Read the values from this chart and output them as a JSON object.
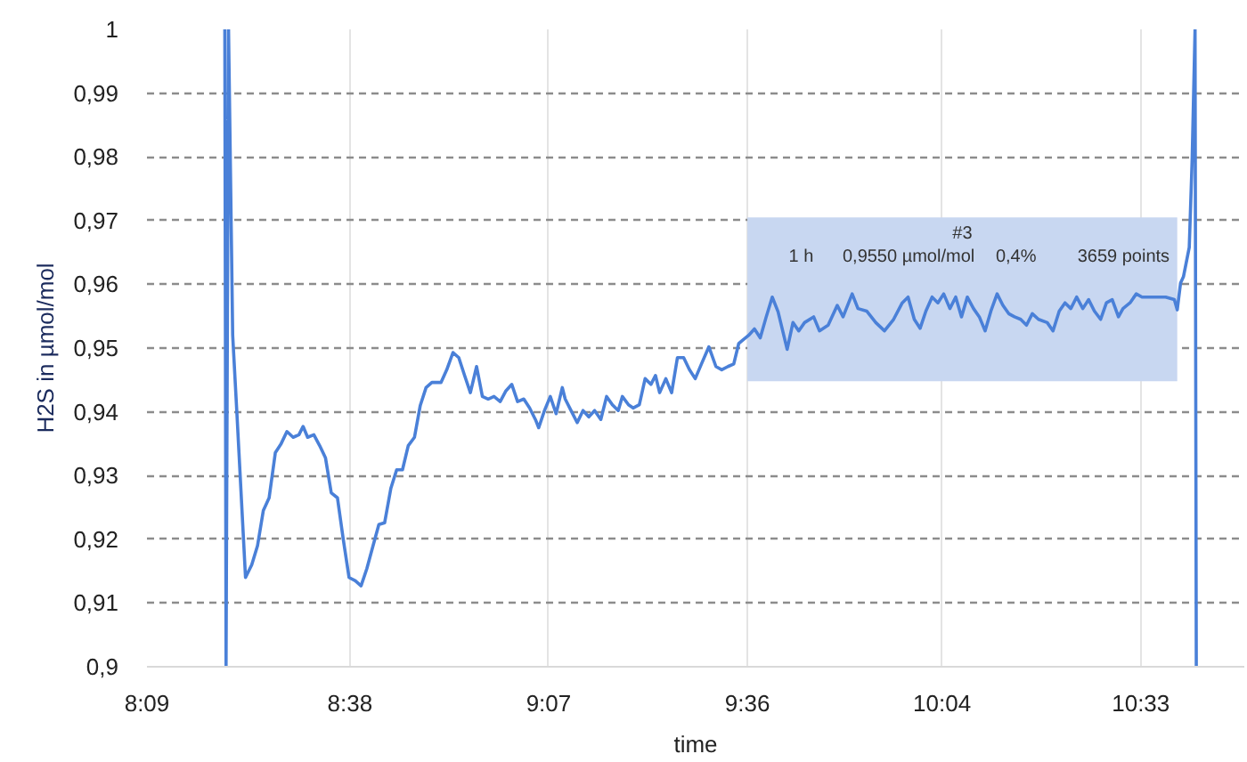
{
  "chart_data": {
    "type": "line",
    "xlabel": "time",
    "ylabel": "H2S in µmol/mol",
    "x": [
      8.338,
      8.341,
      8.347,
      8.357,
      8.367,
      8.388,
      8.403,
      8.417,
      8.431,
      8.445,
      8.46,
      8.474,
      8.488,
      8.503,
      8.517,
      8.527,
      8.538,
      8.553,
      8.567,
      8.581,
      8.595,
      8.61,
      8.624,
      8.638,
      8.653,
      8.667,
      8.681,
      8.696,
      8.71,
      8.724,
      8.739,
      8.753,
      8.767,
      8.781,
      8.796,
      8.81,
      8.824,
      8.838,
      8.86,
      8.874,
      8.889,
      8.903,
      8.917,
      8.931,
      8.946,
      8.96,
      8.974,
      8.988,
      9.003,
      9.017,
      9.031,
      9.045,
      9.06,
      9.074,
      9.088,
      9.096,
      9.11,
      9.124,
      9.138,
      9.153,
      9.16,
      9.174,
      9.189,
      9.203,
      9.217,
      9.231,
      9.246,
      9.26,
      9.274,
      9.288,
      9.298,
      9.313,
      9.324,
      9.339,
      9.353,
      9.367,
      9.378,
      9.388,
      9.403,
      9.417,
      9.431,
      9.446,
      9.46,
      9.474,
      9.489,
      9.507,
      9.524,
      9.538,
      9.553,
      9.567,
      9.579,
      9.588,
      9.603,
      9.617,
      9.631,
      9.645,
      9.66,
      9.674,
      9.696,
      9.71,
      9.724,
      9.738,
      9.76,
      9.774,
      9.795,
      9.817,
      9.831,
      9.853,
      9.867,
      9.888,
      9.91,
      9.931,
      9.953,
      9.974,
      9.988,
      10.003,
      10.017,
      10.031,
      10.046,
      10.06,
      10.074,
      10.089,
      10.103,
      10.117,
      10.131,
      10.146,
      10.16,
      10.174,
      10.188,
      10.203,
      10.217,
      10.231,
      10.245,
      10.26,
      10.274,
      10.288,
      10.303,
      10.324,
      10.338,
      10.353,
      10.367,
      10.381,
      10.395,
      10.41,
      10.424,
      10.438,
      10.453,
      10.467,
      10.481,
      10.496,
      10.507,
      10.524,
      10.539,
      10.553,
      10.581,
      10.61,
      10.631,
      10.638,
      10.646,
      10.653,
      10.667,
      10.674,
      10.681,
      10.684
    ],
    "series": [
      {
        "color": "#4a80d8",
        "values": [
          1.0,
          0.9,
          1.0,
          0.952,
          0.94,
          0.914,
          0.916,
          0.919,
          0.9245,
          0.9265,
          0.9336,
          0.935,
          0.9369,
          0.936,
          0.9364,
          0.9377,
          0.936,
          0.9364,
          0.9347,
          0.9328,
          0.9273,
          0.9265,
          0.92,
          0.914,
          0.9135,
          0.9127,
          0.9154,
          0.919,
          0.9223,
          0.9226,
          0.928,
          0.9309,
          0.9309,
          0.9347,
          0.936,
          0.941,
          0.9438,
          0.9446,
          0.9446,
          0.9466,
          0.9493,
          0.9485,
          0.9457,
          0.943,
          0.9471,
          0.9424,
          0.942,
          0.9424,
          0.9416,
          0.9433,
          0.9443,
          0.9416,
          0.942,
          0.9406,
          0.9388,
          0.9375,
          0.9402,
          0.9424,
          0.9397,
          0.9438,
          0.942,
          0.9402,
          0.9383,
          0.9402,
          0.9392,
          0.9402,
          0.9388,
          0.9424,
          0.9411,
          0.9402,
          0.9424,
          0.9411,
          0.9406,
          0.9411,
          0.9452,
          0.9443,
          0.9457,
          0.943,
          0.9452,
          0.943,
          0.9485,
          0.9485,
          0.9466,
          0.9452,
          0.9475,
          0.9502,
          0.9471,
          0.9466,
          0.9471,
          0.9475,
          0.9507,
          0.9512,
          0.952,
          0.953,
          0.9516,
          0.9548,
          0.958,
          0.9557,
          0.9498,
          0.954,
          0.9527,
          0.954,
          0.9549,
          0.9527,
          0.9536,
          0.9567,
          0.9549,
          0.9585,
          0.9562,
          0.9558,
          0.954,
          0.9527,
          0.9545,
          0.9571,
          0.958,
          0.9545,
          0.9531,
          0.9558,
          0.958,
          0.9571,
          0.9585,
          0.9562,
          0.958,
          0.9549,
          0.958,
          0.9562,
          0.9549,
          0.9527,
          0.9558,
          0.9585,
          0.9567,
          0.9554,
          0.9549,
          0.9545,
          0.9536,
          0.9554,
          0.9545,
          0.954,
          0.9527,
          0.9558,
          0.9571,
          0.9562,
          0.958,
          0.9562,
          0.9576,
          0.9558,
          0.9545,
          0.9571,
          0.9576,
          0.9549,
          0.9562,
          0.9571,
          0.9585,
          0.958,
          0.958,
          0.958,
          0.9576,
          0.956,
          0.9602,
          0.9612,
          0.9658,
          0.9796,
          1.0,
          0.9
        ]
      }
    ],
    "xlim": [
      8.15,
      10.8
    ],
    "xticks": [
      {
        "value": 8.15,
        "label": "8:09"
      },
      {
        "value": 8.64,
        "label": "8:38"
      },
      {
        "value": 9.12,
        "label": "9:07"
      },
      {
        "value": 9.6,
        "label": "9:36"
      },
      {
        "value": 10.07,
        "label": "10:04"
      },
      {
        "value": 10.55,
        "label": "10:33"
      }
    ],
    "ylim": [
      0.9,
      1
    ],
    "yticks": [
      {
        "value": 0.9,
        "label": "0,9"
      },
      {
        "value": 0.91,
        "label": "0,91"
      },
      {
        "value": 0.92,
        "label": "0,92"
      },
      {
        "value": 0.93,
        "label": "0,93"
      },
      {
        "value": 0.94,
        "label": "0,94"
      },
      {
        "value": 0.95,
        "label": "0,95"
      },
      {
        "value": 0.96,
        "label": "0,96"
      },
      {
        "value": 0.97,
        "label": "0,97"
      },
      {
        "value": 0.98,
        "label": "0,98"
      },
      {
        "value": 0.99,
        "label": "0,99"
      },
      1
    ],
    "grid": true,
    "bands": [
      {
        "axis": "x",
        "from": 9.6,
        "to": 10.638,
        "label": "#3\n1 h  0,9550 µmol/mol  0,4%  3659 points",
        "color": "#c8d7f1"
      }
    ]
  }
}
